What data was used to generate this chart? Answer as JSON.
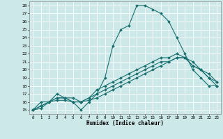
{
  "title": "",
  "xlabel": "Humidex (Indice chaleur)",
  "bg_color": "#cce8e8",
  "line_color": "#1a7070",
  "grid_color": "#ffffff",
  "xlim": [
    -0.5,
    23.5
  ],
  "ylim": [
    14.5,
    28.5
  ],
  "yticks": [
    15,
    16,
    17,
    18,
    19,
    20,
    21,
    22,
    23,
    24,
    25,
    26,
    27,
    28
  ],
  "xticks": [
    0,
    1,
    2,
    3,
    4,
    5,
    6,
    7,
    8,
    9,
    10,
    11,
    12,
    13,
    14,
    15,
    16,
    17,
    18,
    19,
    20,
    21,
    22,
    23
  ],
  "lines": [
    {
      "x": [
        0,
        1,
        2,
        3,
        4,
        5,
        6,
        7,
        8,
        9,
        10,
        11,
        12,
        13,
        14,
        15,
        16,
        17,
        18,
        19,
        20,
        21,
        22,
        23
      ],
      "y": [
        15,
        16,
        16,
        17,
        16.5,
        16,
        15,
        16,
        17,
        19,
        23,
        25,
        25.5,
        28,
        28,
        27.5,
        27,
        26,
        24,
        22,
        20,
        19,
        18,
        18
      ]
    },
    {
      "x": [
        0,
        1,
        2,
        3,
        4,
        5,
        6,
        7,
        8,
        9,
        10,
        11,
        12,
        13,
        14,
        15,
        16,
        17,
        18,
        19,
        20,
        21,
        22,
        23
      ],
      "y": [
        15,
        15.5,
        16,
        16.5,
        16.5,
        16.5,
        16,
        16.5,
        17.5,
        18,
        18.5,
        19,
        19.5,
        20,
        20.5,
        21,
        21.5,
        21.5,
        22,
        21.5,
        21,
        20,
        19.5,
        18.5
      ]
    },
    {
      "x": [
        0,
        1,
        2,
        3,
        4,
        5,
        6,
        7,
        8,
        9,
        10,
        11,
        12,
        13,
        14,
        15,
        16,
        17,
        18,
        19,
        20,
        21,
        22,
        23
      ],
      "y": [
        15,
        15.5,
        16,
        16.5,
        16.5,
        16,
        16,
        16.5,
        17,
        17.5,
        18,
        18.5,
        19,
        19.5,
        20,
        20.5,
        21,
        21,
        21.5,
        21.5,
        20.5,
        20,
        19,
        18
      ]
    },
    {
      "x": [
        0,
        1,
        2,
        3,
        4,
        5,
        6,
        7,
        8,
        9,
        10,
        11,
        12,
        13,
        14,
        15,
        16,
        17,
        18,
        19,
        20,
        21,
        22,
        23
      ],
      "y": [
        15,
        15.2,
        16,
        16.2,
        16.2,
        16,
        16,
        16.2,
        16.5,
        17,
        17.5,
        18,
        18.5,
        19,
        19.5,
        20,
        20.5,
        21,
        21.5,
        21.5,
        20.5,
        20,
        19,
        18.5
      ]
    }
  ]
}
